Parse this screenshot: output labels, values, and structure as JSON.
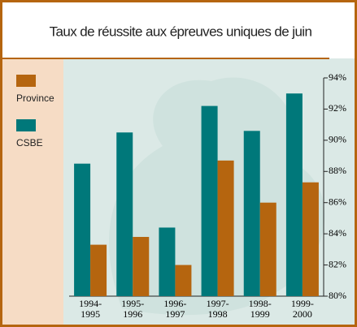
{
  "chart_data": {
    "type": "bar",
    "title": "Taux de réussite aux épreuves uniques de juin",
    "categories": [
      "1994-\n1995",
      "1995-\n1996",
      "1996-\n1997",
      "1997-\n1998",
      "1998-\n1999",
      "1999-\n2000"
    ],
    "series": [
      {
        "name": "Province",
        "color": "#b5650f",
        "values": [
          83.3,
          83.8,
          82.0,
          88.7,
          86.0,
          87.3
        ]
      },
      {
        "name": "CSBE",
        "color": "#00787a",
        "values": [
          88.5,
          90.5,
          84.4,
          92.2,
          90.6,
          93.0
        ]
      }
    ],
    "ylim": [
      80,
      94
    ],
    "yticks": [
      {
        "value": 80,
        "label": "80%"
      },
      {
        "value": 82,
        "label": "82%"
      },
      {
        "value": 84,
        "label": "84%"
      },
      {
        "value": 86,
        "label": "86%"
      },
      {
        "value": 88,
        "label": "88%"
      },
      {
        "value": 90,
        "label": "90%"
      },
      {
        "value": 92,
        "label": "92%"
      },
      {
        "value": 94,
        "label": "94%"
      }
    ]
  }
}
